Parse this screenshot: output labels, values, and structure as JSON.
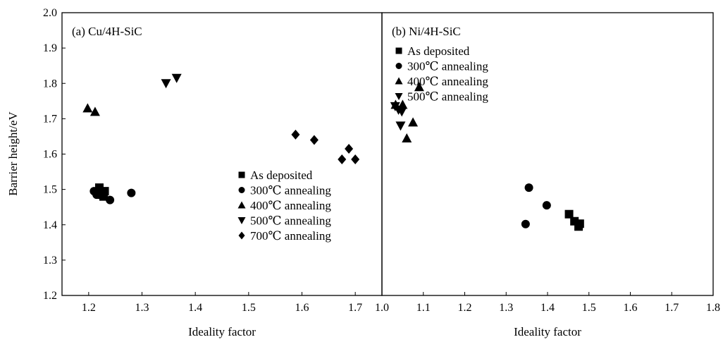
{
  "chart_data": [
    {
      "type": "scatter",
      "panel_label": "(a) Cu/4H-SiC",
      "xlabel": "Ideality factor",
      "ylabel": "Barrier height/eV",
      "xlim": [
        1.15,
        1.75
      ],
      "ylim": [
        1.2,
        2.0
      ],
      "xticks": [
        "1.2",
        "1.3",
        "1.4",
        "1.5",
        "1.6",
        "1.7"
      ],
      "yticks": [
        "1.2",
        "1.3",
        "1.4",
        "1.5",
        "1.6",
        "1.7",
        "1.8",
        "1.9",
        "2.0"
      ],
      "legend_position": "center-right",
      "series": [
        {
          "name": "As deposited",
          "marker": "square",
          "points": [
            [
              1.22,
              1.505
            ],
            [
              1.225,
              1.485
            ],
            [
              1.23,
              1.495
            ],
            [
              1.228,
              1.48
            ]
          ]
        },
        {
          "name": "300℃ annealing",
          "marker": "circle",
          "points": [
            [
              1.21,
              1.495
            ],
            [
              1.215,
              1.485
            ],
            [
              1.24,
              1.47
            ],
            [
              1.28,
              1.49
            ]
          ]
        },
        {
          "name": "400℃ annealing",
          "marker": "triangle-up",
          "points": [
            [
              1.198,
              1.73
            ],
            [
              1.212,
              1.72
            ]
          ]
        },
        {
          "name": "500℃ annealing",
          "marker": "triangle-down",
          "points": [
            [
              1.345,
              1.8
            ],
            [
              1.365,
              1.815
            ]
          ]
        },
        {
          "name": "700℃ annealing",
          "marker": "diamond",
          "points": [
            [
              1.588,
              1.655
            ],
            [
              1.623,
              1.64
            ],
            [
              1.675,
              1.585
            ],
            [
              1.688,
              1.615
            ],
            [
              1.7,
              1.585
            ]
          ]
        }
      ]
    },
    {
      "type": "scatter",
      "panel_label": "(b) Ni/4H-SiC",
      "xlabel": "Ideality factor",
      "ylabel": "",
      "xlim": [
        1.0,
        1.8
      ],
      "ylim": [
        1.2,
        2.0
      ],
      "xticks": [
        "1.0",
        "1.1",
        "1.2",
        "1.3",
        "1.4",
        "1.5",
        "1.6",
        "1.7",
        "1.8"
      ],
      "legend_position": "top-right",
      "series": [
        {
          "name": "As deposited",
          "marker": "square",
          "points": [
            [
              1.452,
              1.43
            ],
            [
              1.465,
              1.41
            ],
            [
              1.475,
              1.395
            ],
            [
              1.478,
              1.403
            ]
          ]
        },
        {
          "name": "300℃ annealing",
          "marker": "circle",
          "points": [
            [
              1.347,
              1.402
            ],
            [
              1.355,
              1.505
            ],
            [
              1.398,
              1.455
            ]
          ]
        },
        {
          "name": "400℃ annealing",
          "marker": "triangle-up",
          "points": [
            [
              1.033,
              1.74
            ],
            [
              1.05,
              1.74
            ],
            [
              1.06,
              1.645
            ],
            [
              1.075,
              1.69
            ],
            [
              1.09,
              1.79
            ]
          ]
        },
        {
          "name": "500℃ annealing",
          "marker": "triangle-down",
          "points": [
            [
              1.032,
              1.735
            ],
            [
              1.04,
              1.725
            ],
            [
              1.048,
              1.72
            ],
            [
              1.045,
              1.68
            ]
          ]
        }
      ]
    }
  ]
}
